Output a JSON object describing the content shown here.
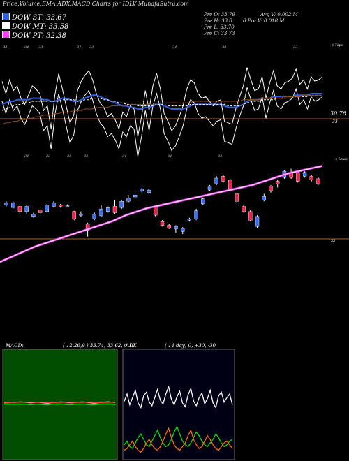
{
  "header": {
    "title": "Price,Volume,EMA,ADX,MACD Charts for IDLV MunafaSutra.com"
  },
  "legend": [
    {
      "label": "DOW ST: 33.67",
      "color": "#3060e0"
    },
    {
      "label": "DOW MT: 33.58",
      "color": "#ffffff"
    },
    {
      "label": "DOW PT: 32.38",
      "color": "#ff40ff"
    }
  ],
  "stats": {
    "prev_open": "Pre  O: 33.79",
    "prev_high": "Pre  H: 33.8",
    "prev_low": "Pre  L: 33.70",
    "prev_close": "Pre  C: 33.73",
    "avg_volume": "Avg V: 0.002  M",
    "prev_volume": "6   Pre  V: 0.018 M"
  },
  "chart_data": [
    {
      "type": "line",
      "name": "price-ema-panel",
      "top_axis_label": "< Tops",
      "right_labels": [
        "30.76",
        "33"
      ],
      "tick_labels": [
        "33",
        "34",
        "33",
        "34",
        "33",
        "34",
        "33",
        "33",
        "34",
        "33",
        "33",
        "33",
        "34",
        "34",
        "33"
      ],
      "series": [
        {
          "color": "#ffffff",
          "values": [
            63,
            55,
            64,
            57,
            60,
            52,
            48,
            54,
            60,
            58,
            55,
            44,
            47,
            32,
            54,
            68,
            58,
            47,
            36,
            41,
            57,
            63,
            67,
            70,
            64,
            55,
            49,
            46,
            40,
            42,
            38,
            32,
            43,
            40,
            47,
            45,
            27,
            40,
            57,
            44,
            60,
            68,
            58,
            42,
            37,
            31,
            34,
            40,
            47,
            58,
            64,
            62,
            55,
            52,
            53,
            50,
            47,
            50,
            51,
            37,
            36,
            35,
            45,
            53,
            60,
            72,
            64,
            57,
            58,
            66,
            52,
            62,
            70,
            60,
            58,
            62,
            63,
            65,
            71,
            61,
            64,
            58,
            66,
            63,
            64,
            66
          ]
        },
        {
          "color": "#3060e0",
          "values": [
            48,
            49,
            50,
            50,
            51,
            51,
            51,
            51,
            52,
            52,
            52,
            51,
            51,
            50,
            50,
            51,
            52,
            52,
            51,
            50,
            50,
            51,
            52,
            53,
            54,
            54,
            53,
            52,
            51,
            50,
            49,
            48,
            47,
            47,
            46,
            46,
            45,
            45,
            46,
            46,
            47,
            48,
            48,
            47,
            46,
            45,
            45,
            45,
            45,
            46,
            47,
            48,
            48,
            48,
            48,
            48,
            48,
            48,
            48,
            47,
            46,
            46,
            46,
            47,
            48,
            50,
            51,
            51,
            51,
            52,
            52,
            52,
            53,
            53,
            53,
            53,
            53,
            53,
            54,
            54,
            54,
            54,
            55,
            55,
            55,
            55
          ]
        },
        {
          "color": "#ffffff",
          "dash": true,
          "values": [
            44,
            45,
            46,
            47,
            48,
            48,
            49,
            49,
            50,
            50,
            50,
            50,
            50,
            50,
            50,
            50,
            51,
            51,
            51,
            51,
            50,
            50,
            51,
            51,
            52,
            52,
            52,
            51,
            51,
            50,
            50,
            49,
            49,
            48,
            48,
            48,
            47,
            47,
            47,
            47,
            47,
            48,
            48,
            48,
            47,
            47,
            47,
            47,
            47,
            47,
            48,
            48,
            48,
            48,
            48,
            48,
            48,
            48,
            48,
            48,
            47,
            47,
            47,
            47,
            48,
            49,
            50,
            50,
            50,
            51,
            51,
            51,
            51,
            52,
            52,
            52,
            52,
            52,
            53,
            53,
            53,
            53,
            54,
            54,
            54,
            54
          ]
        },
        {
          "color": "#8b4a1a",
          "values": [
            35,
            36,
            36,
            37,
            37,
            38,
            38,
            39,
            39,
            40,
            40,
            41,
            41,
            41,
            42,
            42,
            43,
            43,
            43,
            44,
            44,
            44,
            45,
            45,
            45,
            46,
            46,
            46,
            46,
            47,
            47,
            47,
            47,
            47,
            48,
            48,
            48,
            48,
            48,
            48,
            48,
            49,
            49,
            49,
            49,
            49,
            49,
            49,
            49,
            49,
            49,
            50,
            50,
            50,
            50,
            50,
            50,
            50,
            50,
            50,
            50,
            50,
            50,
            50,
            51,
            51,
            51,
            51,
            51,
            52,
            52,
            52,
            52,
            52,
            52,
            53,
            53,
            53,
            53,
            53,
            54,
            54,
            54,
            54,
            54,
            54
          ]
        }
      ]
    },
    {
      "type": "bar",
      "name": "candlestick-panel",
      "right_labels": [
        "< Lows",
        "33"
      ],
      "candles": [
        {
          "open": 33.62,
          "close": 33.66,
          "high": 33.68,
          "low": 33.6
        },
        {
          "open": 33.58,
          "close": 33.66,
          "high": 33.68,
          "low": 33.56
        },
        {
          "open": 33.6,
          "close": 33.52,
          "high": 33.62,
          "low": 33.48
        },
        {
          "open": 33.52,
          "close": 33.6,
          "high": 33.62,
          "low": 33.48
        },
        {
          "open": 33.44,
          "close": 33.48,
          "high": 33.5,
          "low": 33.42
        },
        {
          "open": 33.54,
          "close": 33.5,
          "high": 33.55,
          "low": 33.47
        },
        {
          "open": 33.52,
          "close": 33.62,
          "high": 33.64,
          "low": 33.5
        },
        {
          "open": 33.6,
          "close": 33.66,
          "high": 33.68,
          "low": 33.58
        },
        {
          "open": 33.62,
          "close": 33.61,
          "high": 33.64,
          "low": 33.58
        },
        {
          "open": 33.6,
          "close": 33.61,
          "high": 33.63,
          "low": 33.59
        },
        {
          "open": 33.52,
          "close": 33.4,
          "high": 33.53,
          "low": 33.38
        },
        {
          "open": 33.46,
          "close": 33.48,
          "high": 33.52,
          "low": 33.44
        },
        {
          "open": 33.32,
          "close": 33.22,
          "high": 33.34,
          "low": 33.12
        },
        {
          "open": 33.4,
          "close": 33.48,
          "high": 33.5,
          "low": 33.38
        },
        {
          "open": 33.45,
          "close": 33.56,
          "high": 33.62,
          "low": 33.43
        },
        {
          "open": 33.52,
          "close": 33.58,
          "high": 33.6,
          "low": 33.5
        },
        {
          "open": 33.6,
          "close": 33.5,
          "high": 33.7,
          "low": 33.48
        },
        {
          "open": 33.58,
          "close": 33.68,
          "high": 33.7,
          "low": 33.56
        },
        {
          "open": 33.68,
          "close": 33.73,
          "high": 33.78,
          "low": 33.66
        },
        {
          "open": 33.75,
          "close": 33.78,
          "high": 33.8,
          "low": 33.72
        },
        {
          "open": 33.84,
          "close": 33.88,
          "high": 33.9,
          "low": 33.82
        },
        {
          "open": 33.82,
          "close": 33.86,
          "high": 33.88,
          "low": 33.8
        },
        {
          "open": 33.6,
          "close": 33.46,
          "high": 33.62,
          "low": 33.44
        },
        {
          "open": 33.36,
          "close": 33.3,
          "high": 33.38,
          "low": 33.28
        },
        {
          "open": 33.3,
          "close": 33.26,
          "high": 33.32,
          "low": 33.24
        },
        {
          "open": 33.24,
          "close": 33.28,
          "high": 33.3,
          "low": 33.18
        },
        {
          "open": 33.2,
          "close": 33.25,
          "high": 33.27,
          "low": 33.16
        },
        {
          "open": 33.38,
          "close": 33.4,
          "high": 33.42,
          "low": 33.36
        },
        {
          "open": 33.4,
          "close": 33.53,
          "high": 33.56,
          "low": 33.38
        },
        {
          "open": 33.64,
          "close": 33.72,
          "high": 33.74,
          "low": 33.62
        },
        {
          "open": 33.86,
          "close": 33.92,
          "high": 33.94,
          "low": 33.84
        },
        {
          "open": 33.96,
          "close": 34.05,
          "high": 34.08,
          "low": 33.94
        },
        {
          "open": 34.08,
          "close": 34.0,
          "high": 34.1,
          "low": 33.98
        },
        {
          "open": 34.02,
          "close": 33.86,
          "high": 34.04,
          "low": 33.84
        },
        {
          "open": 33.8,
          "close": 33.68,
          "high": 33.82,
          "low": 33.66
        },
        {
          "open": 33.6,
          "close": 33.52,
          "high": 33.62,
          "low": 33.5
        },
        {
          "open": 33.52,
          "close": 33.38,
          "high": 33.54,
          "low": 33.36
        },
        {
          "open": 33.28,
          "close": 33.44,
          "high": 33.46,
          "low": 33.26
        },
        {
          "open": 33.7,
          "close": 33.76,
          "high": 33.8,
          "low": 33.68
        },
        {
          "open": 33.92,
          "close": 33.85,
          "high": 33.94,
          "low": 33.82
        },
        {
          "open": 34.0,
          "close": 33.96,
          "high": 34.02,
          "low": 33.9
        },
        {
          "open": 34.06,
          "close": 34.16,
          "high": 34.18,
          "low": 34.04
        },
        {
          "open": 34.14,
          "close": 34.06,
          "high": 34.2,
          "low": 34.04
        },
        {
          "open": 34.14,
          "close": 34.0,
          "high": 34.16,
          "low": 33.98
        },
        {
          "open": 34.08,
          "close": 34.14,
          "high": 34.16,
          "low": 34.06
        },
        {
          "open": 34.08,
          "close": 34.02,
          "high": 34.1,
          "low": 34.0
        },
        {
          "open": 34.04,
          "close": 33.96,
          "high": 34.06,
          "low": 33.94
        }
      ],
      "series": [
        {
          "color": "#ff40ff",
          "values": [
            33.05,
            33.09,
            33.13,
            33.17,
            33.21,
            33.25,
            33.28,
            33.31,
            33.34,
            33.37,
            33.4,
            33.43,
            33.46,
            33.49,
            33.52,
            33.55,
            33.58,
            33.62,
            33.66,
            33.69,
            33.72,
            33.75,
            33.77,
            33.79,
            33.81,
            33.83,
            33.85,
            33.87,
            33.89,
            33.91,
            33.93,
            33.95,
            33.97,
            33.99,
            34.01,
            34.03,
            34.05,
            34.08,
            34.11,
            34.14,
            34.17,
            34.2,
            34.22,
            34.24,
            34.26,
            34.28,
            34.3
          ]
        }
      ]
    },
    {
      "type": "line",
      "name": "macd-panel",
      "title": "MACD:",
      "params": "( 12,26,9 ) 33.74,  33.62,  0.12",
      "series": [
        {
          "color": "#ffffff",
          "values": [
            0.22,
            0.25,
            0.27,
            0.24,
            0.28,
            0.3,
            0.26,
            0.23,
            0.2,
            0.24,
            0.27,
            0.22,
            0.18,
            0.16,
            0.2,
            0.25,
            0.28,
            0.3,
            0.26,
            0.22,
            0.19,
            0.23,
            0.27,
            0.31,
            0.28,
            0.22,
            0.18,
            0.16,
            0.21,
            0.25,
            0.29,
            0.32,
            0.27,
            0.22
          ]
        },
        {
          "color": "#ff4040",
          "values": [
            0.18,
            0.2,
            0.23,
            0.24,
            0.25,
            0.27,
            0.28,
            0.27,
            0.25,
            0.24,
            0.24,
            0.24,
            0.23,
            0.21,
            0.2,
            0.21,
            0.23,
            0.25,
            0.26,
            0.25,
            0.23,
            0.22,
            0.23,
            0.25,
            0.26,
            0.25,
            0.23,
            0.21,
            0.2,
            0.21,
            0.23,
            0.25,
            0.26,
            0.25
          ]
        },
        {
          "color": "#00e000",
          "values": [
            0.05,
            0.06,
            0.05,
            0.02,
            0.04,
            0.04,
            0.02,
            -0.01,
            -0.04,
            0.0,
            0.03,
            -0.02,
            -0.05,
            -0.05,
            0.0,
            0.04,
            0.05,
            0.05,
            0.0,
            -0.03,
            -0.04,
            0.01,
            0.04,
            0.06,
            0.02,
            -0.03,
            -0.05,
            -0.05,
            0.01,
            0.04,
            0.06,
            0.07,
            0.01,
            -0.03
          ]
        }
      ]
    },
    {
      "type": "line",
      "name": "adx-panel",
      "title": "ADX",
      "params": "( 14  day) 0,  +30, -30",
      "series": [
        {
          "color": "#ffffff",
          "values": [
            62,
            70,
            58,
            66,
            74,
            60,
            55,
            68,
            72,
            61,
            57,
            66,
            75,
            63,
            59,
            70,
            78,
            64,
            58,
            67,
            73,
            60,
            56,
            69,
            76,
            62,
            57,
            66,
            71,
            59,
            65,
            74,
            60,
            55,
            68,
            72,
            61,
            66,
            70,
            58
          ]
        },
        {
          "color": "#00e000",
          "values": [
            14,
            18,
            12,
            10,
            16,
            22,
            26,
            20,
            14,
            12,
            18,
            24,
            30,
            22,
            16,
            12,
            14,
            20,
            28,
            34,
            26,
            18,
            14,
            12,
            16,
            22,
            28,
            24,
            18,
            14,
            12,
            16,
            20,
            26,
            22,
            16,
            12,
            14,
            18,
            20
          ]
        },
        {
          "color": "#ff6a00",
          "values": [
            8,
            10,
            14,
            18,
            12,
            8,
            6,
            10,
            16,
            20,
            14,
            10,
            8,
            12,
            18,
            26,
            32,
            22,
            14,
            10,
            8,
            12,
            16,
            24,
            30,
            20,
            14,
            10,
            12,
            18,
            24,
            20,
            14,
            10,
            8,
            12,
            16,
            18,
            14,
            10
          ]
        }
      ]
    }
  ]
}
